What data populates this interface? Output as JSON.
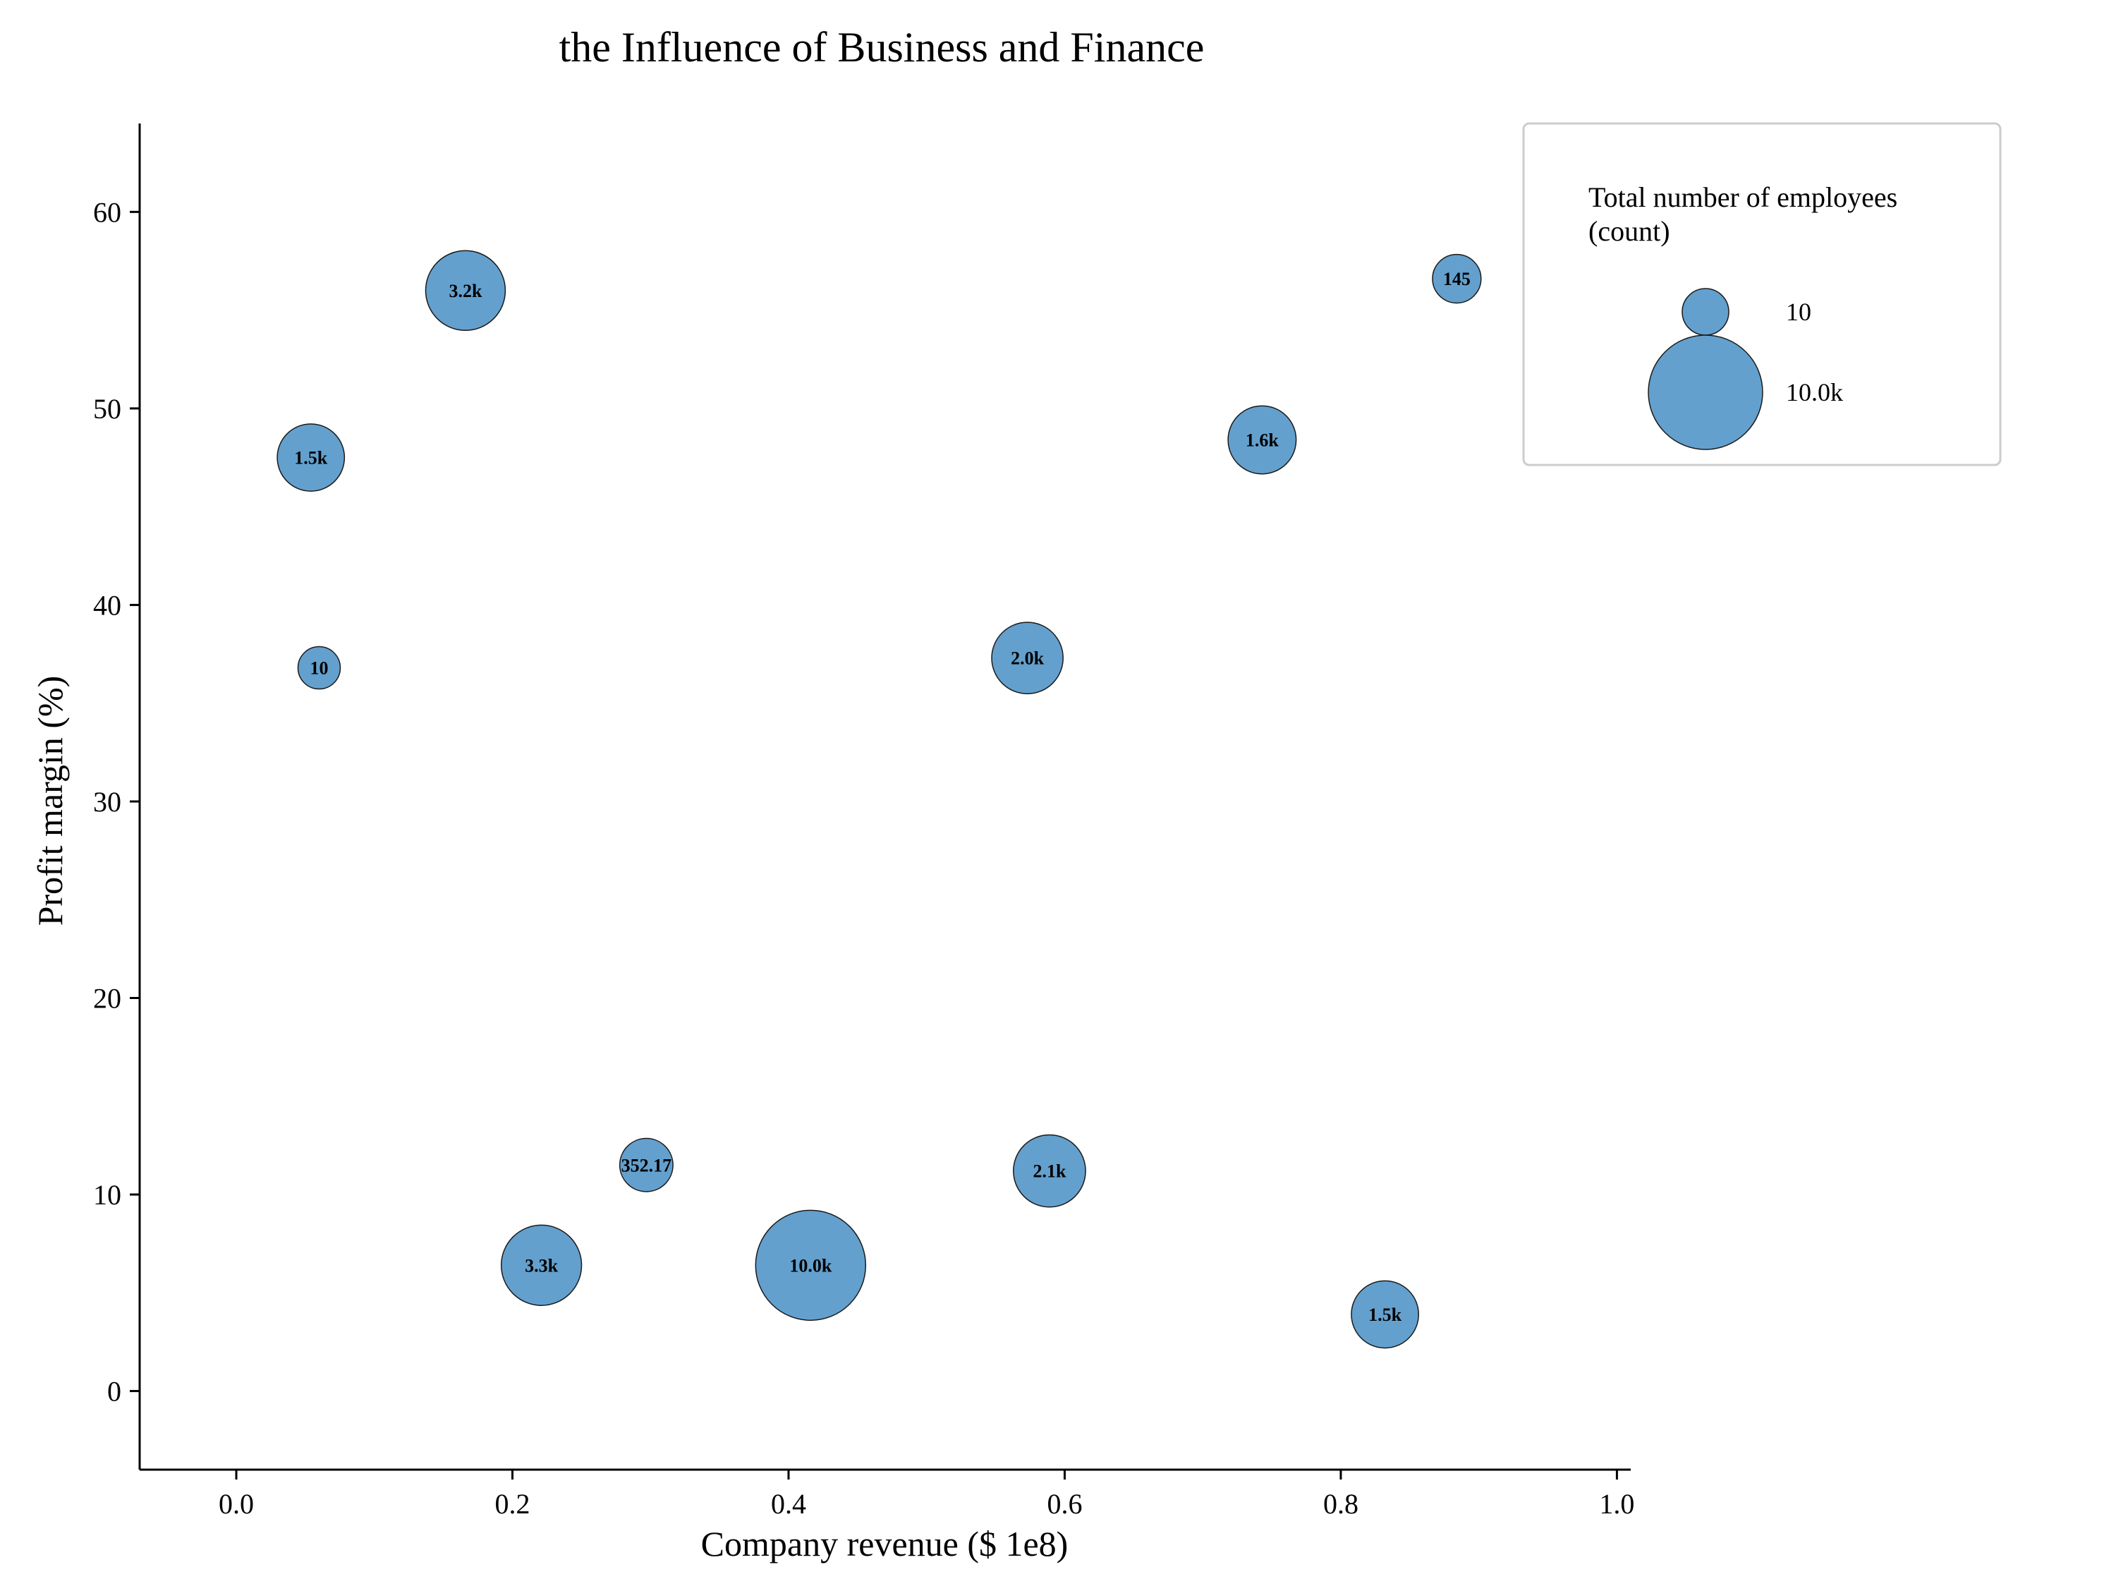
{
  "chart_data": {
    "type": "scatter",
    "title": "the Influence of Business and Finance",
    "xlabel": "Company revenue ($ 1e8)",
    "ylabel": "Profit margin (%)",
    "xlim": [
      -0.07,
      1.01
    ],
    "ylim": [
      -4,
      64.5
    ],
    "xticks": [
      0.0,
      0.2,
      0.4,
      0.6,
      0.8,
      1.0
    ],
    "xtick_labels": [
      "0.0",
      "0.2",
      "0.4",
      "0.6",
      "0.8",
      "1.0"
    ],
    "yticks": [
      0,
      10,
      20,
      30,
      40,
      50,
      60
    ],
    "ytick_labels": [
      "0",
      "10",
      "20",
      "30",
      "40",
      "50",
      "60"
    ],
    "grid": false,
    "bubble_color": "#5b9bcb",
    "points": [
      {
        "x": 0.166,
        "y": 56.0,
        "size": 3200,
        "label": "3.2k"
      },
      {
        "x": 0.054,
        "y": 47.5,
        "size": 1500,
        "label": "1.5k"
      },
      {
        "x": 0.06,
        "y": 36.8,
        "size": 10,
        "label": "10"
      },
      {
        "x": 0.884,
        "y": 56.6,
        "size": 145,
        "label": "145"
      },
      {
        "x": 0.743,
        "y": 48.4,
        "size": 1600,
        "label": "1.6k"
      },
      {
        "x": 0.573,
        "y": 37.3,
        "size": 2000,
        "label": "2.0k"
      },
      {
        "x": 0.297,
        "y": 11.5,
        "size": 352.17,
        "label": "352.17"
      },
      {
        "x": 0.589,
        "y": 11.2,
        "size": 2100,
        "label": "2.1k"
      },
      {
        "x": 0.221,
        "y": 6.4,
        "size": 3300,
        "label": "3.3k"
      },
      {
        "x": 0.416,
        "y": 6.4,
        "size": 10000,
        "label": "10.0k"
      },
      {
        "x": 0.832,
        "y": 3.9,
        "size": 1500,
        "label": "1.5k"
      }
    ],
    "legend": {
      "placement": "top-right",
      "title_lines": [
        "Total number of employees",
        "(count)"
      ],
      "entries": [
        {
          "size": 10,
          "label": "10"
        },
        {
          "size": 10000,
          "label": "10.0k"
        }
      ]
    }
  }
}
